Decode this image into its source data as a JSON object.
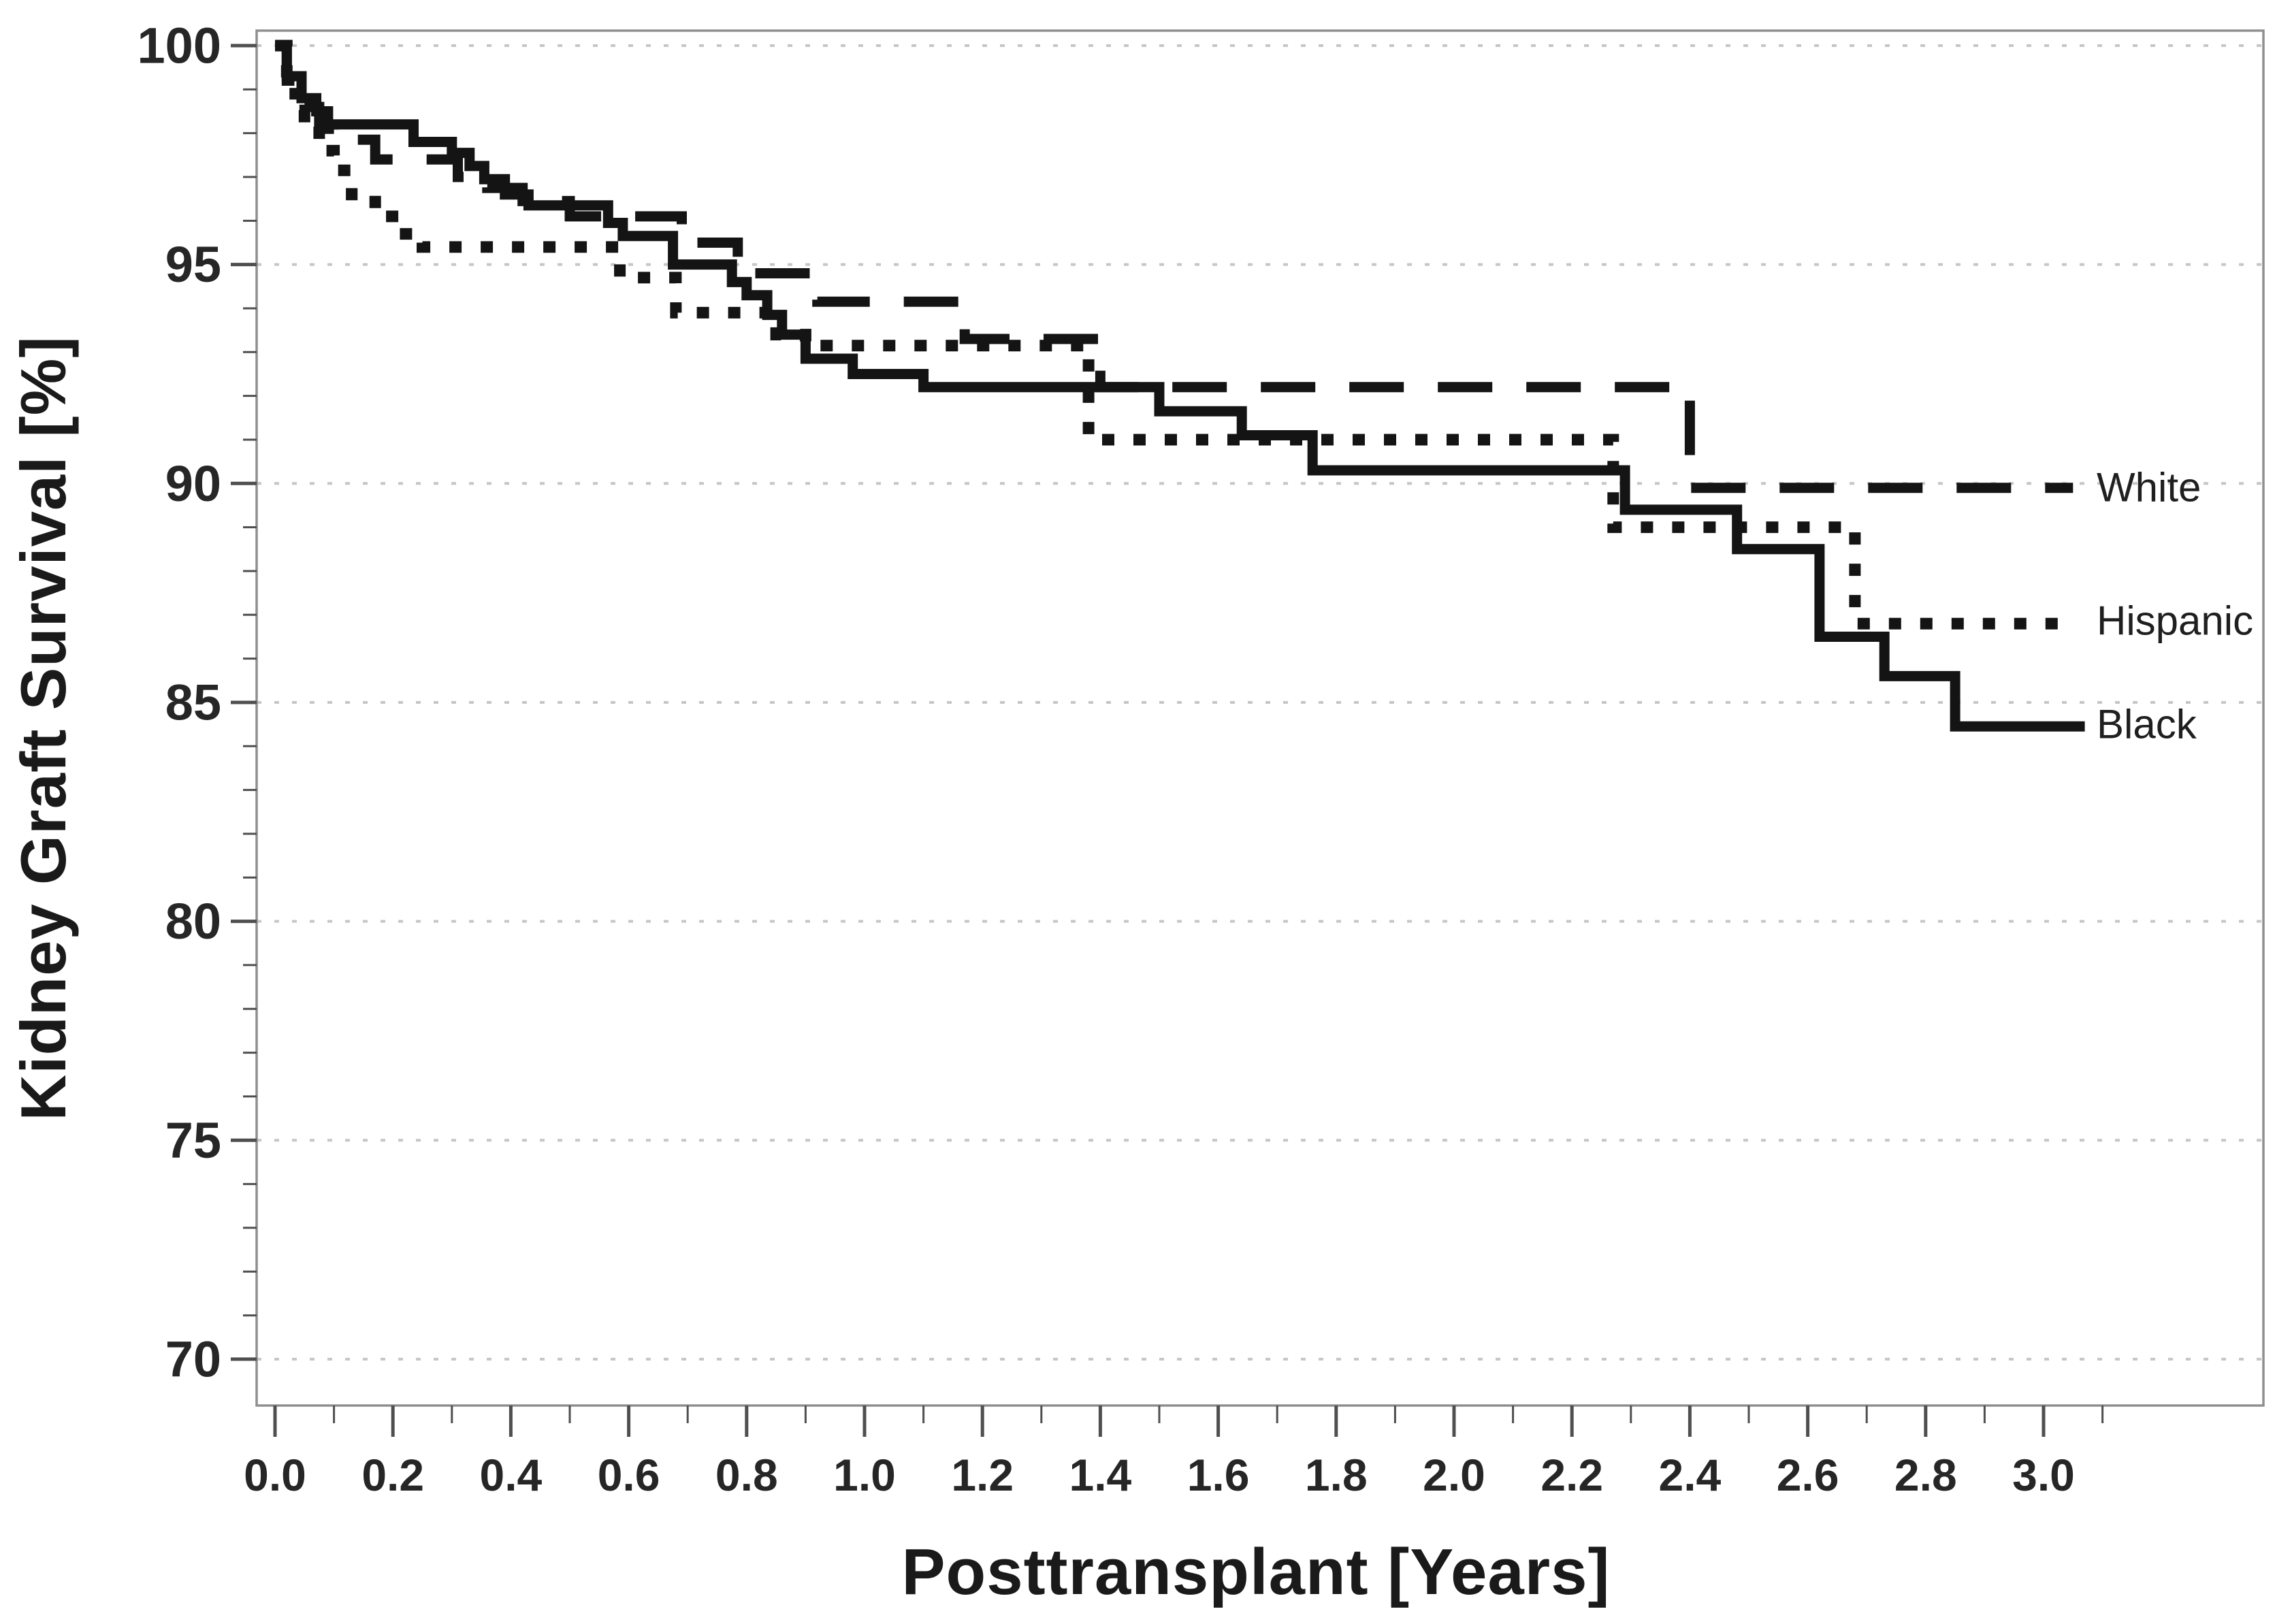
{
  "figure": {
    "background": "#ffffff"
  },
  "chart_data": {
    "type": "line",
    "subtype": "kaplan-meier-step",
    "title": "",
    "xlabel": "Posttransplant [Years]",
    "ylabel": "Kidney Graft Survival [%]",
    "xlim": [
      -0.031,
      3.372
    ],
    "ylim": [
      69.0,
      100.35
    ],
    "grid": "horizontal-light-dashed",
    "legend_position": "right-end-labels",
    "x_ticks_major": [
      0.0,
      0.2,
      0.4,
      0.6,
      0.8,
      1.0,
      1.2,
      1.4,
      1.6,
      1.8,
      2.0,
      2.2,
      2.4,
      2.6,
      2.8,
      3.0
    ],
    "x_tick_labels": [
      "0.0",
      "0.2",
      "0.4",
      "0.6",
      "0.8",
      "1.0",
      "1.2",
      "1.4",
      "1.6",
      "1.8",
      "2.0",
      "2.2",
      "2.4",
      "2.6",
      "2.8",
      "3.0"
    ],
    "x_minor_ticks": [
      0.1,
      0.3,
      0.5,
      0.7,
      0.9,
      1.1,
      1.3,
      1.5,
      1.7,
      1.9,
      2.1,
      2.3,
      2.5,
      2.7,
      2.9,
      3.1
    ],
    "y_ticks_major": [
      70,
      75,
      80,
      85,
      90,
      95,
      100
    ],
    "y_tick_labels": [
      "70",
      "75",
      "80",
      "85",
      "90",
      "95",
      "100"
    ],
    "y_minor_step": 1,
    "colors": {
      "line": "#141414",
      "grid": "#c6c6c6",
      "axis_border": "#8f8f8f",
      "tick": "#4f4f4f",
      "tick_text": "#262626",
      "title_text": "#1a1a1a"
    },
    "series": [
      {
        "name": "White",
        "end_label": "White",
        "line_style": "dashed",
        "end_value": 89.9,
        "points": [
          [
            0,
            100
          ],
          [
            0.02,
            99.2
          ],
          [
            0.05,
            98.6
          ],
          [
            0.075,
            98.1
          ],
          [
            0.1,
            97.85
          ],
          [
            0.17,
            97.4
          ],
          [
            0.31,
            97.0
          ],
          [
            0.36,
            96.75
          ],
          [
            0.42,
            96.45
          ],
          [
            0.5,
            96.1
          ],
          [
            0.69,
            95.5
          ],
          [
            0.785,
            94.8
          ],
          [
            0.92,
            94.15
          ],
          [
            1.17,
            93.3
          ],
          [
            1.4,
            92.2
          ],
          [
            2.4,
            89.9
          ],
          [
            3.05,
            89.9
          ]
        ]
      },
      {
        "name": "Hispanic",
        "end_label": "Hispanic",
        "line_style": "dotted",
        "end_value": 86.8,
        "points": [
          [
            0,
            100
          ],
          [
            0.02,
            98.9
          ],
          [
            0.05,
            98.2
          ],
          [
            0.075,
            97.6
          ],
          [
            0.1,
            97.15
          ],
          [
            0.13,
            96.6
          ],
          [
            0.17,
            96.1
          ],
          [
            0.21,
            95.7
          ],
          [
            0.25,
            95.4
          ],
          [
            0.585,
            94.7
          ],
          [
            0.68,
            93.9
          ],
          [
            0.85,
            93.4
          ],
          [
            0.9,
            93.15
          ],
          [
            1.38,
            91.0
          ],
          [
            2.27,
            89.0
          ],
          [
            2.68,
            86.8
          ],
          [
            3.055,
            86.8
          ]
        ]
      },
      {
        "name": "Black",
        "end_label": "Black",
        "line_style": "solid",
        "end_value": 84.45,
        "points": [
          [
            0,
            100
          ],
          [
            0.02,
            99.3
          ],
          [
            0.045,
            98.8
          ],
          [
            0.07,
            98.5
          ],
          [
            0.09,
            98.2
          ],
          [
            0.235,
            97.8
          ],
          [
            0.3,
            97.55
          ],
          [
            0.33,
            97.25
          ],
          [
            0.355,
            96.95
          ],
          [
            0.39,
            96.6
          ],
          [
            0.43,
            96.35
          ],
          [
            0.565,
            95.95
          ],
          [
            0.59,
            95.65
          ],
          [
            0.675,
            95.0
          ],
          [
            0.775,
            94.6
          ],
          [
            0.8,
            94.3
          ],
          [
            0.835,
            93.85
          ],
          [
            0.86,
            93.4
          ],
          [
            0.9,
            92.85
          ],
          [
            0.98,
            92.5
          ],
          [
            1.1,
            92.2
          ],
          [
            1.5,
            91.65
          ],
          [
            1.64,
            91.1
          ],
          [
            1.76,
            90.3
          ],
          [
            2.29,
            89.4
          ],
          [
            2.48,
            88.5
          ],
          [
            2.62,
            86.5
          ],
          [
            2.73,
            85.6
          ],
          [
            2.85,
            84.45
          ],
          [
            3.07,
            84.45
          ]
        ]
      }
    ]
  },
  "plot_geometry_note": "x-axis 0.0 years at 404px spacing 866px/year; y-axis 100% at 67px spacing 64.33px/%"
}
